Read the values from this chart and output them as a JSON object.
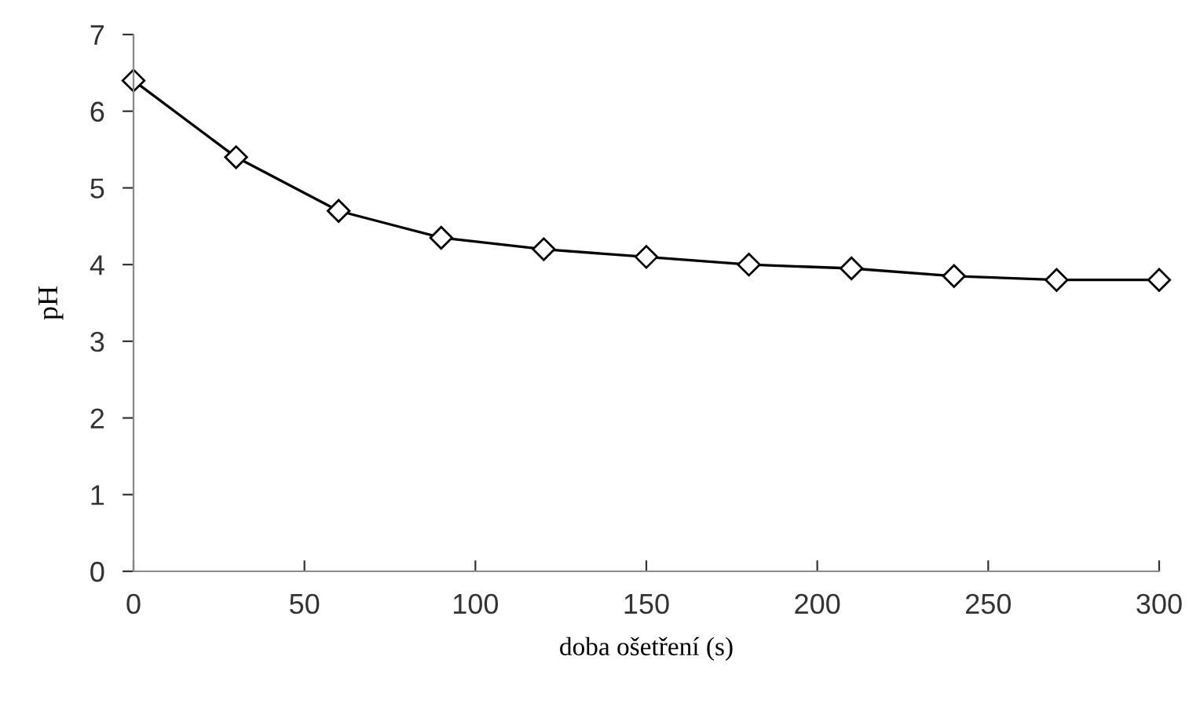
{
  "chart_data": {
    "type": "line",
    "xlabel": "doba ošetření (s)",
    "ylabel": "pH",
    "x": [
      0,
      30,
      60,
      90,
      120,
      150,
      180,
      210,
      240,
      270,
      300
    ],
    "series": [
      {
        "color": "#000000",
        "values": [
          6.4,
          5.4,
          4.7,
          4.35,
          4.2,
          4.1,
          4.0,
          3.95,
          3.85,
          3.8,
          3.8
        ]
      }
    ],
    "xlim": [
      0,
      300
    ],
    "ylim": [
      0,
      7
    ],
    "xticks": [
      0,
      50,
      100,
      150,
      200,
      250,
      300
    ],
    "yticks": [
      0,
      1,
      2,
      3,
      4,
      5,
      6,
      7
    ],
    "marker": "diamond",
    "line_style": "solid",
    "grid": false,
    "legend": false
  }
}
